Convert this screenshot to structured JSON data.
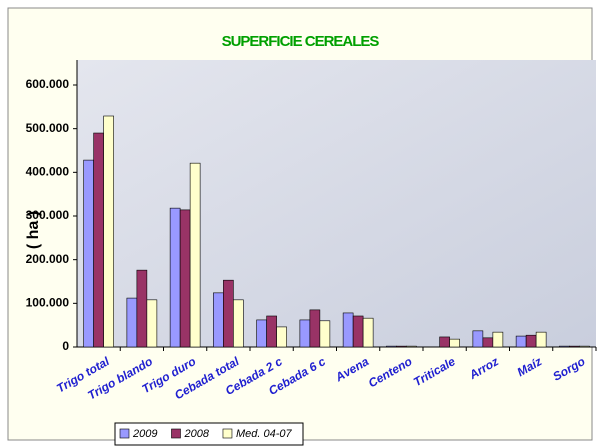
{
  "chart_data": {
    "type": "bar",
    "title": "SUPERFICIE CEREALES",
    "y_label": "( ha )",
    "categories": [
      "Trigo total",
      "Trigo blando",
      "Trigo duro",
      "Cebada total",
      "Cebada 2 c",
      "Cebada 6 c",
      "Avena",
      "Centeno",
      "Triticale",
      "Arroz",
      "Maíz",
      "Sorgo"
    ],
    "series": [
      {
        "name": "2009",
        "color": "#9999ff",
        "values": [
          428000,
          112000,
          318000,
          124000,
          62000,
          62000,
          78000,
          2000,
          0,
          37000,
          25000,
          2000
        ]
      },
      {
        "name": "2008",
        "color": "#993366",
        "values": [
          490000,
          176000,
          314000,
          153000,
          71000,
          85000,
          71000,
          2000,
          23000,
          21000,
          27000,
          2000
        ]
      },
      {
        "name": "Med. 04-07",
        "color": "#ffffcc",
        "values": [
          529000,
          108000,
          421000,
          108000,
          46000,
          60000,
          66000,
          2000,
          18000,
          34000,
          34000,
          2000
        ]
      }
    ],
    "ylim": [
      0,
      600000
    ],
    "yticks": [
      {
        "value": 0,
        "label": "0"
      },
      {
        "value": 100000,
        "label": "100.000"
      },
      {
        "value": 200000,
        "label": "200.000"
      },
      {
        "value": 300000,
        "label": "300.000"
      },
      {
        "value": 400000,
        "label": "400.000"
      },
      {
        "value": 500000,
        "label": "500.000"
      },
      {
        "value": 600000,
        "label": "600.000"
      }
    ],
    "legend": "bottom"
  }
}
